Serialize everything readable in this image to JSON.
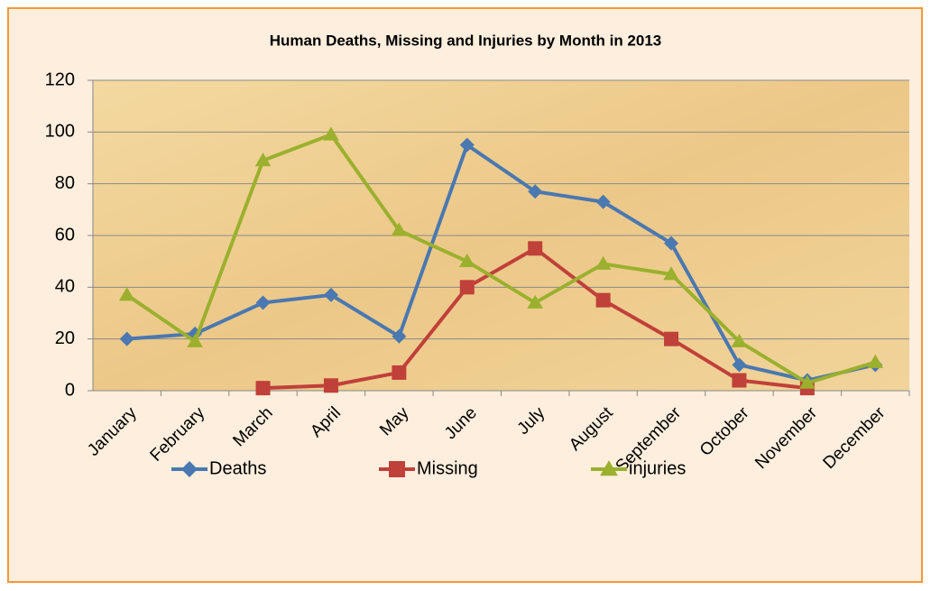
{
  "chart_data": {
    "type": "line",
    "title": "Human Deaths, Missing and Injuries by Month in 2013",
    "categories": [
      "January",
      "February",
      "March",
      "April",
      "May",
      "June",
      "July",
      "August",
      "September",
      "October",
      "November",
      "December"
    ],
    "series": [
      {
        "name": "Deaths",
        "color": "#4a78b0",
        "marker": "diamond",
        "values": [
          20,
          22,
          34,
          37,
          21,
          95,
          77,
          73,
          57,
          10,
          4,
          10
        ]
      },
      {
        "name": "Missing",
        "color": "#c0403a",
        "marker": "square",
        "values": [
          null,
          null,
          1,
          2,
          7,
          40,
          55,
          35,
          20,
          4,
          1,
          null
        ]
      },
      {
        "name": "injuries",
        "color": "#9bb02e",
        "marker": "triangle",
        "values": [
          37,
          19,
          89,
          99,
          62,
          50,
          34,
          49,
          45,
          19,
          3,
          11
        ]
      }
    ],
    "ylim": [
      0,
      120
    ],
    "yticks": [
      0,
      20,
      40,
      60,
      80,
      100,
      120
    ],
    "grid": true,
    "legend": "bottom"
  }
}
